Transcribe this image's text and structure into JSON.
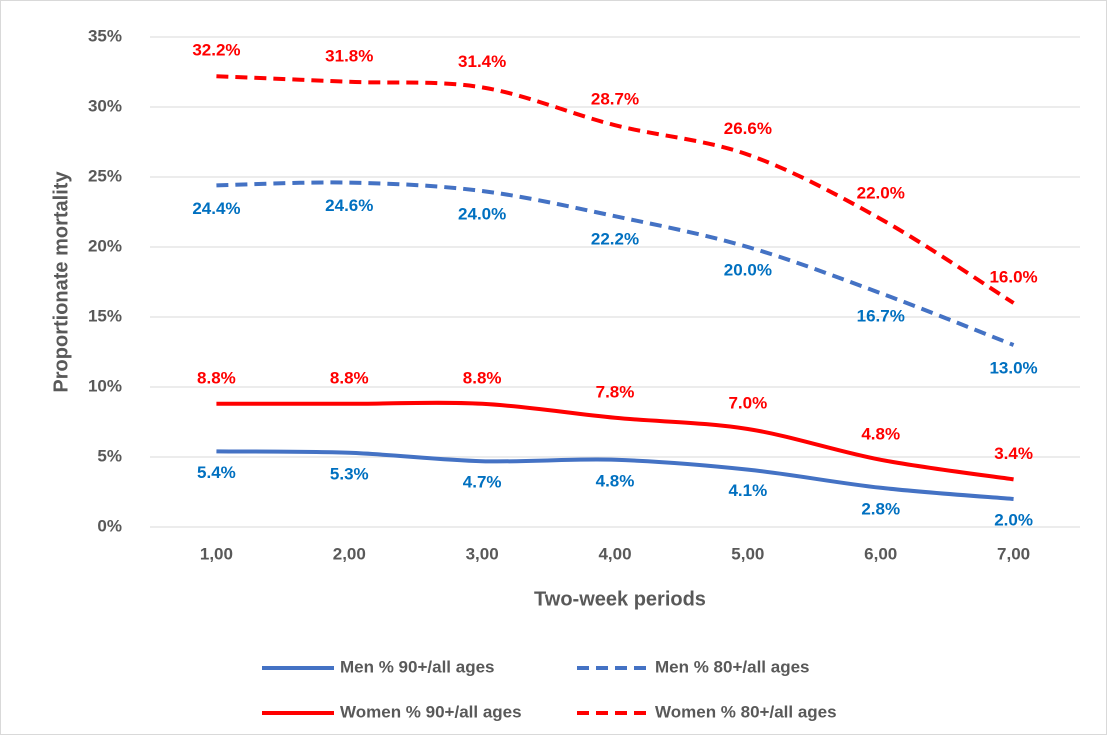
{
  "chart_data": {
    "type": "line",
    "x_label": "Two-week periods",
    "y_label": "Proportionate mortality",
    "categories": [
      "1,00",
      "2,00",
      "3,00",
      "4,00",
      "5,00",
      "6,00",
      "7,00"
    ],
    "series": [
      {
        "name": "Men % 90+/all ages",
        "color": "#4472c4",
        "dashed": false,
        "values": [
          5.4,
          5.3,
          4.7,
          4.8,
          4.1,
          2.8,
          2.0
        ],
        "value_labels": [
          "5.4%",
          "5.3%",
          "4.7%",
          "4.8%",
          "4.1%",
          "2.8%",
          "2.0%"
        ]
      },
      {
        "name": "Men % 80+/all ages",
        "color": "#4472c4",
        "dashed": true,
        "values": [
          24.4,
          24.6,
          24.0,
          22.2,
          20.0,
          16.7,
          13.0
        ],
        "value_labels": [
          "24.4%",
          "24.6%",
          "24.0%",
          "22.2%",
          "20.0%",
          "16.7%",
          "13.0%"
        ]
      },
      {
        "name": "Women % 90+/all ages",
        "color": "#ff0000",
        "dashed": false,
        "values": [
          8.8,
          8.8,
          8.8,
          7.8,
          7.0,
          4.8,
          3.4
        ],
        "value_labels": [
          "8.8%",
          "8.8%",
          "8.8%",
          "7.8%",
          "7.0%",
          "4.8%",
          "3.4%"
        ]
      },
      {
        "name": "Women % 80+/all ages",
        "color": "#ff0000",
        "dashed": true,
        "values": [
          32.2,
          31.8,
          31.4,
          28.7,
          26.6,
          22.0,
          16.0
        ],
        "value_labels": [
          "32.2%",
          "31.8%",
          "31.4%",
          "28.7%",
          "26.6%",
          "22.0%",
          "16.0%"
        ]
      }
    ],
    "ylim": [
      0,
      35
    ],
    "yticks": [
      {
        "value": 0,
        "label": "0%"
      },
      {
        "value": 5,
        "label": "5%"
      },
      {
        "value": 10,
        "label": "10%"
      },
      {
        "value": 15,
        "label": "15%"
      },
      {
        "value": 20,
        "label": "20%"
      },
      {
        "value": 25,
        "label": "25%"
      },
      {
        "value": 30,
        "label": "30%"
      },
      {
        "value": 35,
        "label": "35%"
      }
    ],
    "grid": true
  }
}
